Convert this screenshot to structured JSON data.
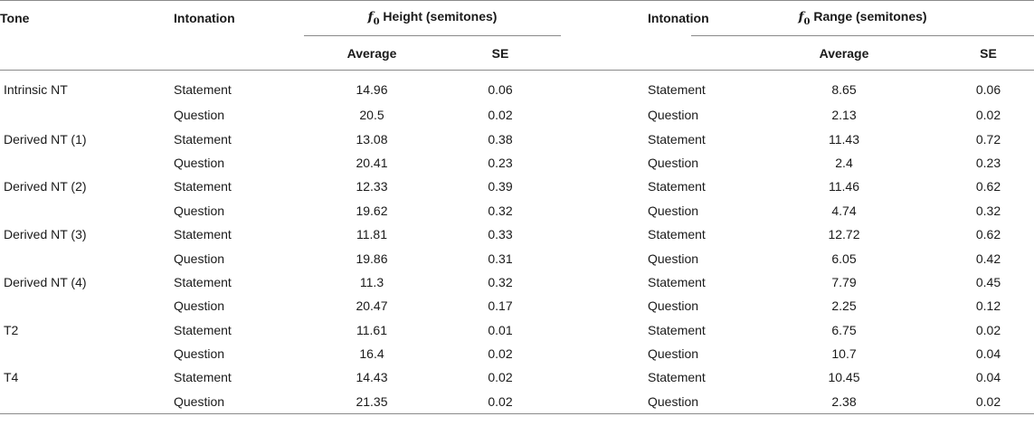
{
  "headers": {
    "tone": "Tone",
    "intonation_height": "Intonation",
    "height_group": " Height (semitones)",
    "intonation_range": "Intonation",
    "range_group": " Range (semitones)",
    "f0_symbol": "f",
    "f0_sub": "0",
    "average": "Average",
    "se": "SE"
  },
  "rows": [
    {
      "tone": "Intrinsic NT",
      "int1": "Statement",
      "h_avg": "14.96",
      "h_se": "0.06",
      "int2": "Statement",
      "r_avg": "8.65",
      "r_se": "0.06"
    },
    {
      "tone": "",
      "int1": "Question",
      "h_avg": "20.5",
      "h_se": "0.02",
      "int2": "Question",
      "r_avg": "2.13",
      "r_se": "0.02"
    },
    {
      "tone": "Derived NT (1)",
      "int1": "Statement",
      "h_avg": "13.08",
      "h_se": "0.38",
      "int2": "Statement",
      "r_avg": "11.43",
      "r_se": "0.72"
    },
    {
      "tone": "",
      "int1": "Question",
      "h_avg": "20.41",
      "h_se": "0.23",
      "int2": "Question",
      "r_avg": "2.4",
      "r_se": "0.23"
    },
    {
      "tone": "Derived NT (2)",
      "int1": "Statement",
      "h_avg": "12.33",
      "h_se": "0.39",
      "int2": "Statement",
      "r_avg": "11.46",
      "r_se": "0.62"
    },
    {
      "tone": "",
      "int1": "Question",
      "h_avg": "19.62",
      "h_se": "0.32",
      "int2": "Question",
      "r_avg": "4.74",
      "r_se": "0.32"
    },
    {
      "tone": "Derived NT (3)",
      "int1": "Statement",
      "h_avg": "11.81",
      "h_se": "0.33",
      "int2": "Statement",
      "r_avg": "12.72",
      "r_se": "0.62"
    },
    {
      "tone": "",
      "int1": "Question",
      "h_avg": "19.86",
      "h_se": "0.31",
      "int2": "Question",
      "r_avg": "6.05",
      "r_se": "0.42"
    },
    {
      "tone": "Derived NT (4)",
      "int1": "Statement",
      "h_avg": "11.3",
      "h_se": "0.32",
      "int2": "Statement",
      "r_avg": "7.79",
      "r_se": "0.45"
    },
    {
      "tone": "",
      "int1": "Question",
      "h_avg": "20.47",
      "h_se": "0.17",
      "int2": "Question",
      "r_avg": "2.25",
      "r_se": "0.12"
    },
    {
      "tone": "T2",
      "int1": "Statement",
      "h_avg": "11.61",
      "h_se": "0.01",
      "int2": "Statement",
      "r_avg": "6.75",
      "r_se": "0.02"
    },
    {
      "tone": "",
      "int1": "Question",
      "h_avg": "16.4",
      "h_se": "0.02",
      "int2": "Question",
      "r_avg": "10.7",
      "r_se": "0.04"
    },
    {
      "tone": "T4",
      "int1": "Statement",
      "h_avg": "14.43",
      "h_se": "0.02",
      "int2": "Statement",
      "r_avg": "10.45",
      "r_se": "0.04"
    },
    {
      "tone": "",
      "int1": "Question",
      "h_avg": "21.35",
      "h_se": "0.02",
      "int2": "Question",
      "r_avg": "2.38",
      "r_se": "0.02"
    }
  ]
}
